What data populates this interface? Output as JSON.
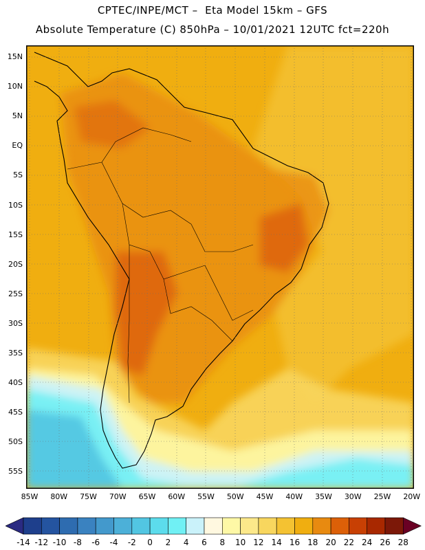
{
  "header": {
    "line1": "CPTEC/INPE/MCT –  Eta Model 15km – GFS",
    "line2": "Absolute Temperature (C) 850hPa – 10/01/2021 12UTC fct=220h"
  },
  "map": {
    "lat_labels": [
      "15N",
      "10N",
      "5N",
      "EQ",
      "5S",
      "10S",
      "15S",
      "20S",
      "25S",
      "30S",
      "35S",
      "40S",
      "45S",
      "50S",
      "55S"
    ],
    "lon_labels": [
      "85W",
      "80W",
      "75W",
      "70W",
      "65W",
      "60W",
      "55W",
      "50W",
      "45W",
      "40W",
      "35W",
      "30W",
      "25W",
      "20W"
    ],
    "extent": {
      "lon": [
        -86,
        -20
      ],
      "lat": [
        -58,
        17
      ]
    },
    "grid": "dotted every 5 degrees"
  },
  "colorbar": {
    "labels": [
      "-14",
      "-12",
      "-10",
      "-8",
      "-6",
      "-4",
      "-2",
      "0",
      "2",
      "4",
      "6",
      "8",
      "10",
      "12",
      "14",
      "16",
      "18",
      "20",
      "22",
      "24",
      "26",
      "28"
    ],
    "colors": [
      "#1e3f8c",
      "#2454a0",
      "#2e6cb0",
      "#3a82c0",
      "#4399cc",
      "#4cb0d8",
      "#52c6e2",
      "#5cdcec",
      "#70f0f4",
      "#caf2fa",
      "#fff8e0",
      "#fef8a6",
      "#fce88a",
      "#f8d65e",
      "#f4c232",
      "#f0ae10",
      "#e88a10",
      "#dc6008",
      "#c84004",
      "#a82800",
      "#7c1808"
    ],
    "under_color": "#2a2a82",
    "over_color": "#6a0024"
  }
}
